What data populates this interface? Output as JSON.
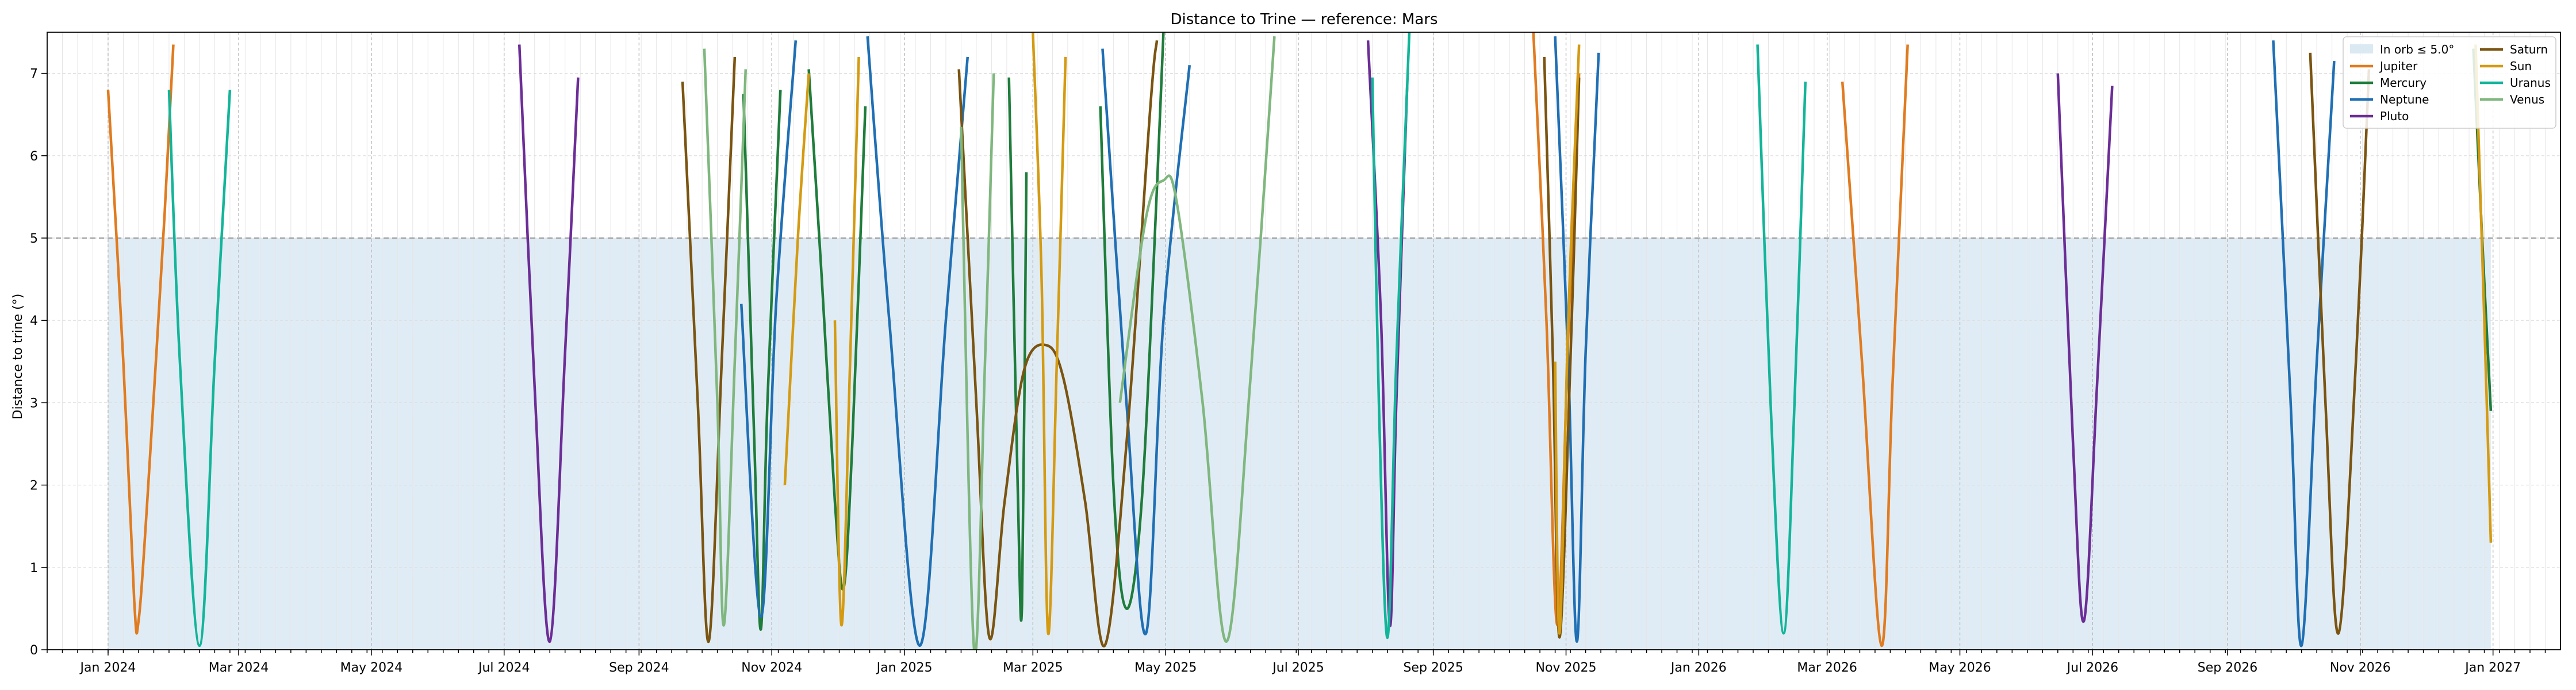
{
  "chart_data": {
    "type": "line",
    "title": "Distance to Trine — reference: Mars",
    "xlabel": "",
    "ylabel": "Distance to trine (°)",
    "xlim": [
      "2023-12-04",
      "2027-02-01"
    ],
    "ylim": [
      0,
      7.5
    ],
    "y_ticks": [
      0,
      1,
      2,
      3,
      4,
      5,
      6,
      7
    ],
    "x_tick_labels": [
      "Jan 2024",
      "Mar 2024",
      "May 2024",
      "Jul 2024",
      "Sep 2024",
      "Nov 2024",
      "Jan 2025",
      "Mar 2025",
      "May 2025",
      "Jul 2025",
      "Sep 2025",
      "Nov 2025",
      "Jan 2026",
      "Mar 2026",
      "May 2026",
      "Jul 2026",
      "Sep 2026",
      "Nov 2026",
      "Jan 2027"
    ],
    "x_ticks": [
      "2024-01-01",
      "2024-03-01",
      "2024-05-01",
      "2024-07-01",
      "2024-09-01",
      "2024-11-01",
      "2025-01-01",
      "2025-03-01",
      "2025-05-01",
      "2025-07-01",
      "2025-09-01",
      "2025-11-01",
      "2026-01-01",
      "2026-03-01",
      "2026-05-01",
      "2026-07-01",
      "2026-09-01",
      "2026-11-01",
      "2027-01-01"
    ],
    "grid": "on (dashed at major ticks, faint at minor)",
    "orb": {
      "label": "In orb ≤ 5.0°",
      "value": 5.0,
      "x_range": [
        "2024-01-01",
        "2026-12-31"
      ],
      "color": "#dbe9f3"
    },
    "legend": {
      "placement": "top-right",
      "columns": 2
    },
    "series": [
      {
        "name": "Jupiter",
        "color": "#e07b1f",
        "segments": [
          [
            [
              "2024-01-01",
              6.8
            ],
            [
              "2024-01-08",
              3.5
            ],
            [
              "2024-01-13",
              0.6
            ],
            [
              "2024-01-15",
              0.35
            ],
            [
              "2024-01-19",
              1.8
            ],
            [
              "2024-01-27",
              5.3
            ],
            [
              "2024-01-31",
              7.35
            ]
          ],
          [
            [
              "2025-10-17",
              7.5
            ],
            [
              "2025-10-23",
              4.0
            ],
            [
              "2025-10-28",
              0.3
            ],
            [
              "2025-11-02",
              3.8
            ],
            [
              "2025-11-07",
              7.0
            ]
          ],
          [
            [
              "2026-03-08",
              6.9
            ],
            [
              "2026-03-17",
              3.5
            ],
            [
              "2026-03-26",
              0.05
            ],
            [
              "2026-03-31",
              3.2
            ],
            [
              "2026-04-07",
              7.35
            ]
          ]
        ]
      },
      {
        "name": "Mercury",
        "color": "#1e7d3b",
        "segments": [
          [
            [
              "2024-10-19",
              6.75
            ],
            [
              "2024-10-24",
              2.5
            ],
            [
              "2024-10-27",
              0.25
            ],
            [
              "2024-10-30",
              3.0
            ],
            [
              "2024-11-05",
              6.8
            ]
          ],
          [
            [
              "2024-11-18",
              7.05
            ],
            [
              "2024-11-24",
              4.5
            ],
            [
              "2024-11-30",
              1.8
            ],
            [
              "2024-12-04",
              0.75
            ],
            [
              "2024-12-08",
              2.5
            ],
            [
              "2024-12-14",
              6.6
            ]
          ],
          [
            [
              "2025-02-18",
              6.95
            ],
            [
              "2025-02-22",
              2.0
            ],
            [
              "2025-02-24",
              0.55
            ],
            [
              "2025-02-26",
              5.8
            ]
          ],
          [
            [
              "2025-04-01",
              6.6
            ],
            [
              "2025-04-07",
              2.0
            ],
            [
              "2025-04-13",
              0.5
            ],
            [
              "2025-04-20",
              1.8
            ],
            [
              "2025-04-27",
              5.6
            ],
            [
              "2025-04-30",
              7.5
            ]
          ],
          [
            [
              "2026-12-23",
              7.3
            ],
            [
              "2026-12-27",
              5.0
            ],
            [
              "2026-12-31",
              2.9
            ]
          ]
        ]
      },
      {
        "name": "Neptune",
        "color": "#1f6fb4",
        "segments": [
          [
            [
              "2024-10-18",
              4.2
            ],
            [
              "2024-10-27",
              0.4
            ],
            [
              "2024-11-03",
              4.2
            ],
            [
              "2024-11-12",
              7.4
            ]
          ],
          [
            [
              "2024-12-15",
              7.45
            ],
            [
              "2024-12-25",
              4.0
            ],
            [
              "2025-01-08",
              0.05
            ],
            [
              "2025-01-20",
              4.0
            ],
            [
              "2025-01-30",
              7.2
            ]
          ],
          [
            [
              "2025-04-02",
              7.3
            ],
            [
              "2025-04-13",
              3.0
            ],
            [
              "2025-04-22",
              0.2
            ],
            [
              "2025-04-30",
              4.0
            ],
            [
              "2025-05-12",
              7.1
            ]
          ],
          [
            [
              "2025-10-27",
              7.45
            ],
            [
              "2025-11-02",
              3.5
            ],
            [
              "2025-11-06",
              0.1
            ],
            [
              "2025-11-10",
              3.6
            ],
            [
              "2025-11-16",
              7.25
            ]
          ],
          [
            [
              "2026-09-22",
              7.4
            ],
            [
              "2026-09-30",
              3.0
            ],
            [
              "2026-10-05",
              0.05
            ],
            [
              "2026-10-12",
              3.5
            ],
            [
              "2026-10-20",
              7.15
            ]
          ]
        ]
      },
      {
        "name": "Pluto",
        "color": "#6c2d96",
        "segments": [
          [
            [
              "2024-07-08",
              7.35
            ],
            [
              "2024-07-15",
              3.2
            ],
            [
              "2024-07-22",
              0.1
            ],
            [
              "2024-07-29",
              3.6
            ],
            [
              "2024-08-04",
              6.95
            ]
          ],
          [
            [
              "2025-08-02",
              7.4
            ],
            [
              "2025-08-08",
              4.0
            ],
            [
              "2025-08-12",
              0.3
            ],
            [
              "2025-08-15",
              3.0
            ],
            [
              "2025-08-20",
              6.85
            ]
          ],
          [
            [
              "2026-06-15",
              7.0
            ],
            [
              "2026-06-22",
              2.5
            ],
            [
              "2026-06-27",
              0.35
            ],
            [
              "2026-07-03",
              3.2
            ],
            [
              "2026-07-10",
              6.85
            ]
          ]
        ]
      },
      {
        "name": "Saturn",
        "color": "#7a5410",
        "segments": [
          [
            [
              "2024-09-21",
              6.9
            ],
            [
              "2024-09-28",
              3.0
            ],
            [
              "2024-10-03",
              0.1
            ],
            [
              "2024-10-09",
              3.5
            ],
            [
              "2024-10-15",
              7.2
            ]
          ],
          [
            [
              "2025-01-26",
              7.05
            ],
            [
              "2025-02-03",
              3.0
            ],
            [
              "2025-02-09",
              0.15
            ],
            [
              "2025-02-16",
              1.8
            ],
            [
              "2025-02-25",
              3.4
            ],
            [
              "2025-03-07",
              3.7
            ],
            [
              "2025-03-15",
              3.3
            ],
            [
              "2025-03-25",
              1.8
            ],
            [
              "2025-04-03",
              0.05
            ],
            [
              "2025-04-13",
              2.5
            ],
            [
              "2025-04-24",
              6.6
            ],
            [
              "2025-04-27",
              7.4
            ]
          ],
          [
            [
              "2025-10-22",
              7.2
            ],
            [
              "2025-10-26",
              3.5
            ],
            [
              "2025-10-29",
              0.15
            ],
            [
              "2025-11-03",
              3.5
            ],
            [
              "2025-11-07",
              6.95
            ]
          ],
          [
            [
              "2026-10-09",
              7.25
            ],
            [
              "2026-10-16",
              3.0
            ],
            [
              "2026-10-22",
              0.2
            ],
            [
              "2026-10-30",
              3.5
            ],
            [
              "2026-11-05",
              7.05
            ]
          ]
        ]
      },
      {
        "name": "Sun",
        "color": "#d49b12",
        "segments": [
          [
            [
              "2024-11-07",
              2.0
            ],
            [
              "2024-11-13",
              5.0
            ],
            [
              "2024-11-18",
              7.0
            ]
          ],
          [
            [
              "2024-11-30",
              4.0
            ],
            [
              "2024-12-03",
              0.3
            ],
            [
              "2024-12-07",
              3.5
            ],
            [
              "2024-12-11",
              7.2
            ]
          ],
          [
            [
              "2025-03-01",
              7.5
            ],
            [
              "2025-03-05",
              4.5
            ],
            [
              "2025-03-08",
              0.2
            ],
            [
              "2025-03-12",
              3.5
            ],
            [
              "2025-03-16",
              7.2
            ]
          ],
          [
            [
              "2025-10-27",
              3.5
            ],
            [
              "2025-10-29",
              0.2
            ],
            [
              "2025-11-02",
              4.0
            ],
            [
              "2025-11-07",
              7.35
            ]
          ],
          [
            [
              "2026-12-24",
              7.35
            ],
            [
              "2026-12-28",
              4.0
            ],
            [
              "2026-12-31",
              1.3
            ]
          ]
        ]
      },
      {
        "name": "Uranus",
        "color": "#12b59a",
        "segments": [
          [
            [
              "2024-01-29",
              6.8
            ],
            [
              "2024-02-03",
              3.5
            ],
            [
              "2024-02-12",
              0.05
            ],
            [
              "2024-02-19",
              3.5
            ],
            [
              "2024-02-26",
              6.8
            ]
          ],
          [
            [
              "2025-08-04",
              6.95
            ],
            [
              "2025-08-07",
              3.0
            ],
            [
              "2025-08-11",
              0.15
            ],
            [
              "2025-08-15",
              3.5
            ],
            [
              "2025-08-21",
              7.5
            ]
          ],
          [
            [
              "2026-01-28",
              7.35
            ],
            [
              "2026-02-03",
              3.0
            ],
            [
              "2026-02-09",
              0.2
            ],
            [
              "2026-02-14",
              3.0
            ],
            [
              "2026-02-19",
              6.9
            ]
          ]
        ]
      },
      {
        "name": "Venus",
        "color": "#7fb77e",
        "segments": [
          [
            [
              "2024-10-01",
              7.3
            ],
            [
              "2024-10-07",
              3.0
            ],
            [
              "2024-10-10",
              0.3
            ],
            [
              "2024-10-15",
              3.5
            ],
            [
              "2024-10-20",
              7.05
            ]
          ],
          [
            [
              "2025-01-27",
              6.35
            ],
            [
              "2025-02-02",
              0.0
            ],
            [
              "2025-02-07",
              3.5
            ],
            [
              "2025-02-11",
              7.0
            ]
          ],
          [
            [
              "2025-04-10",
              3.0
            ],
            [
              "2025-04-22",
              5.25
            ],
            [
              "2025-04-30",
              5.7
            ],
            [
              "2025-05-06",
              5.45
            ],
            [
              "2025-05-18",
              3.0
            ],
            [
              "2025-05-29",
              0.1
            ],
            [
              "2025-06-09",
              3.3
            ],
            [
              "2025-06-20",
              7.45
            ]
          ]
        ]
      }
    ]
  }
}
